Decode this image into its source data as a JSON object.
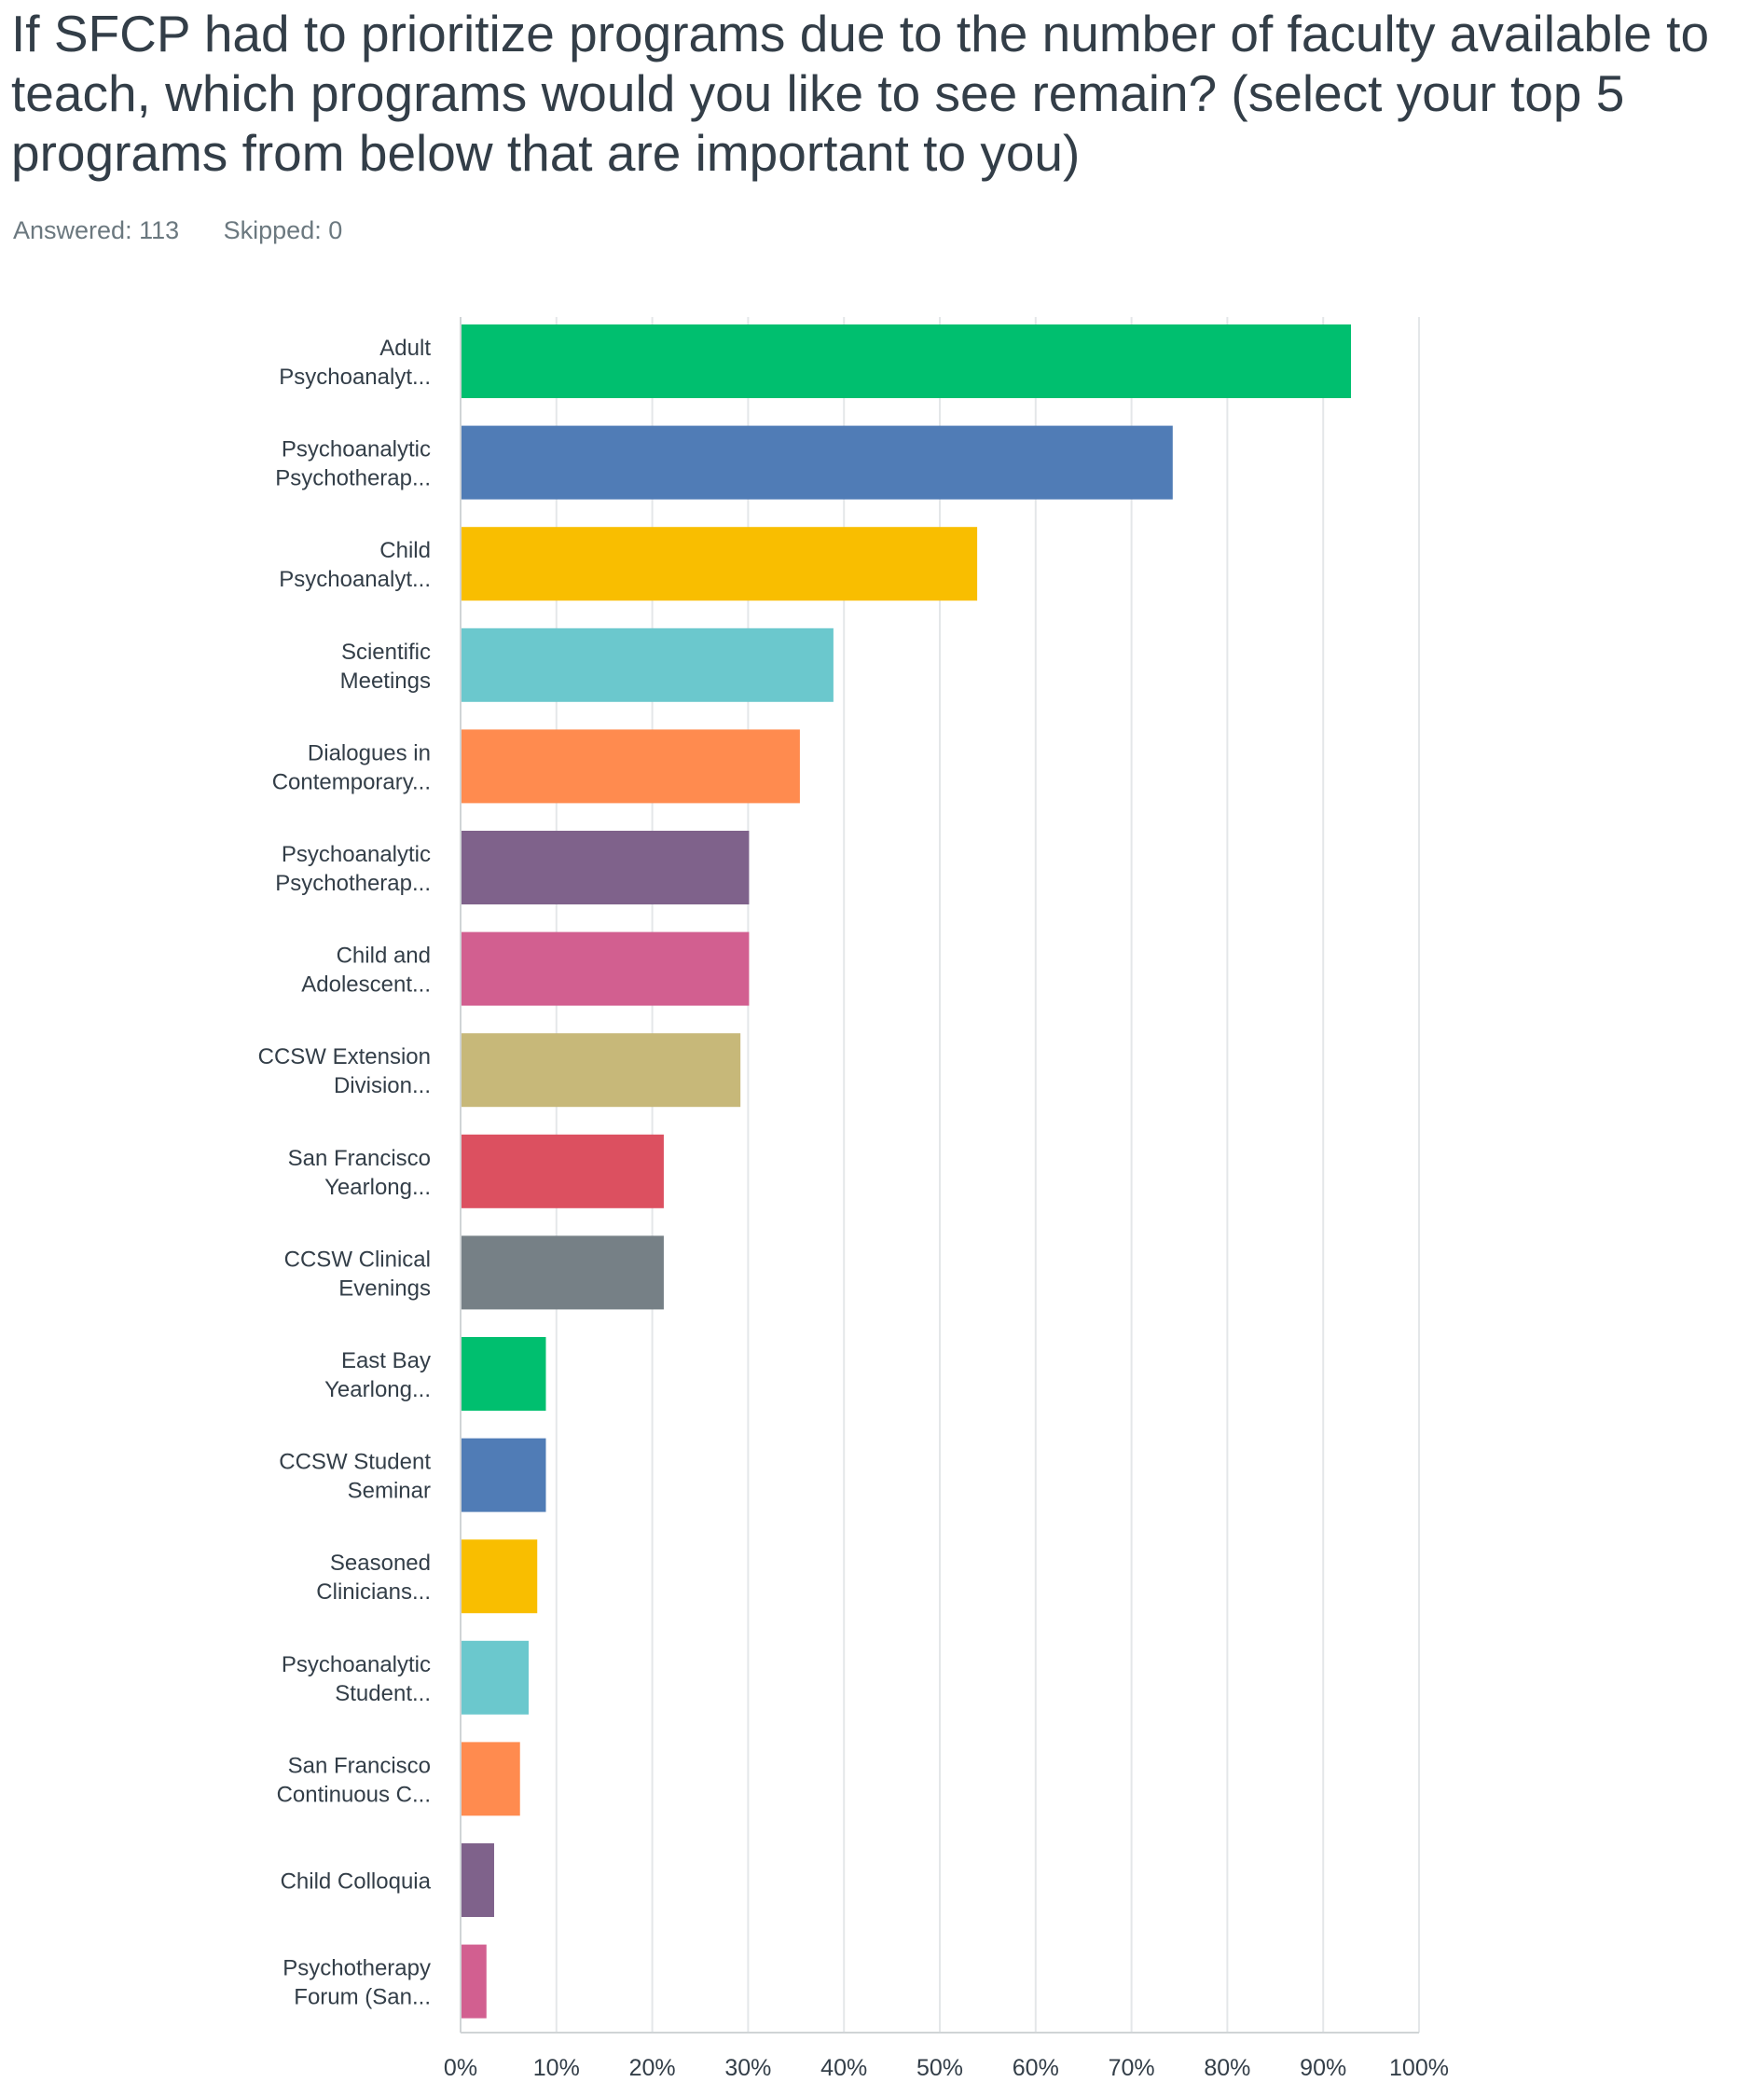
{
  "question": {
    "title": "If SFCP had to prioritize programs due to the number of  faculty available to teach, which programs would you like to see remain? (select your top 5 programs from below that are important to you)",
    "answered_label": "Answered: 113",
    "skipped_label": "Skipped: 0"
  },
  "chart_data": {
    "type": "bar",
    "orientation": "horizontal",
    "categories": [
      [
        "Adult",
        "Psychoanalyt..."
      ],
      [
        "Psychoanalytic",
        "Psychotherap..."
      ],
      [
        "Child",
        "Psychoanalyt..."
      ],
      [
        "Scientific",
        "Meetings"
      ],
      [
        "Dialogues in",
        "Contemporary..."
      ],
      [
        "Psychoanalytic",
        "Psychotherap..."
      ],
      [
        "Child and",
        "Adolescent..."
      ],
      [
        "CCSW Extension",
        "Division..."
      ],
      [
        "San Francisco",
        "Yearlong..."
      ],
      [
        "CCSW Clinical",
        "Evenings"
      ],
      [
        "East Bay",
        "Yearlong..."
      ],
      [
        "CCSW Student",
        "Seminar"
      ],
      [
        "Seasoned",
        "Clinicians..."
      ],
      [
        "Psychoanalytic",
        "Student..."
      ],
      [
        "San Francisco",
        "Continuous C..."
      ],
      [
        "Child Colloquia"
      ],
      [
        "Psychotherapy",
        "Forum (San..."
      ]
    ],
    "values": [
      92.9,
      74.3,
      53.9,
      38.9,
      35.4,
      30.1,
      30.1,
      29.2,
      21.2,
      21.2,
      8.9,
      8.9,
      8.0,
      7.1,
      6.2,
      3.5,
      2.7
    ],
    "colors": [
      "#00bf6f",
      "#507cb6",
      "#f9be00",
      "#6bc8cd",
      "#ff8b4f",
      "#7f628b",
      "#d25f90",
      "#c7b879",
      "#dc5060",
      "#768086",
      "#00bf6f",
      "#507cb6",
      "#f9be00",
      "#6bc8cd",
      "#ff8b4f",
      "#7f628b",
      "#d25f90"
    ],
    "xlim": [
      0,
      100
    ],
    "xticks": [
      "0%",
      "10%",
      "20%",
      "30%",
      "40%",
      "50%",
      "60%",
      "70%",
      "80%",
      "90%",
      "100%"
    ],
    "grid": true
  }
}
